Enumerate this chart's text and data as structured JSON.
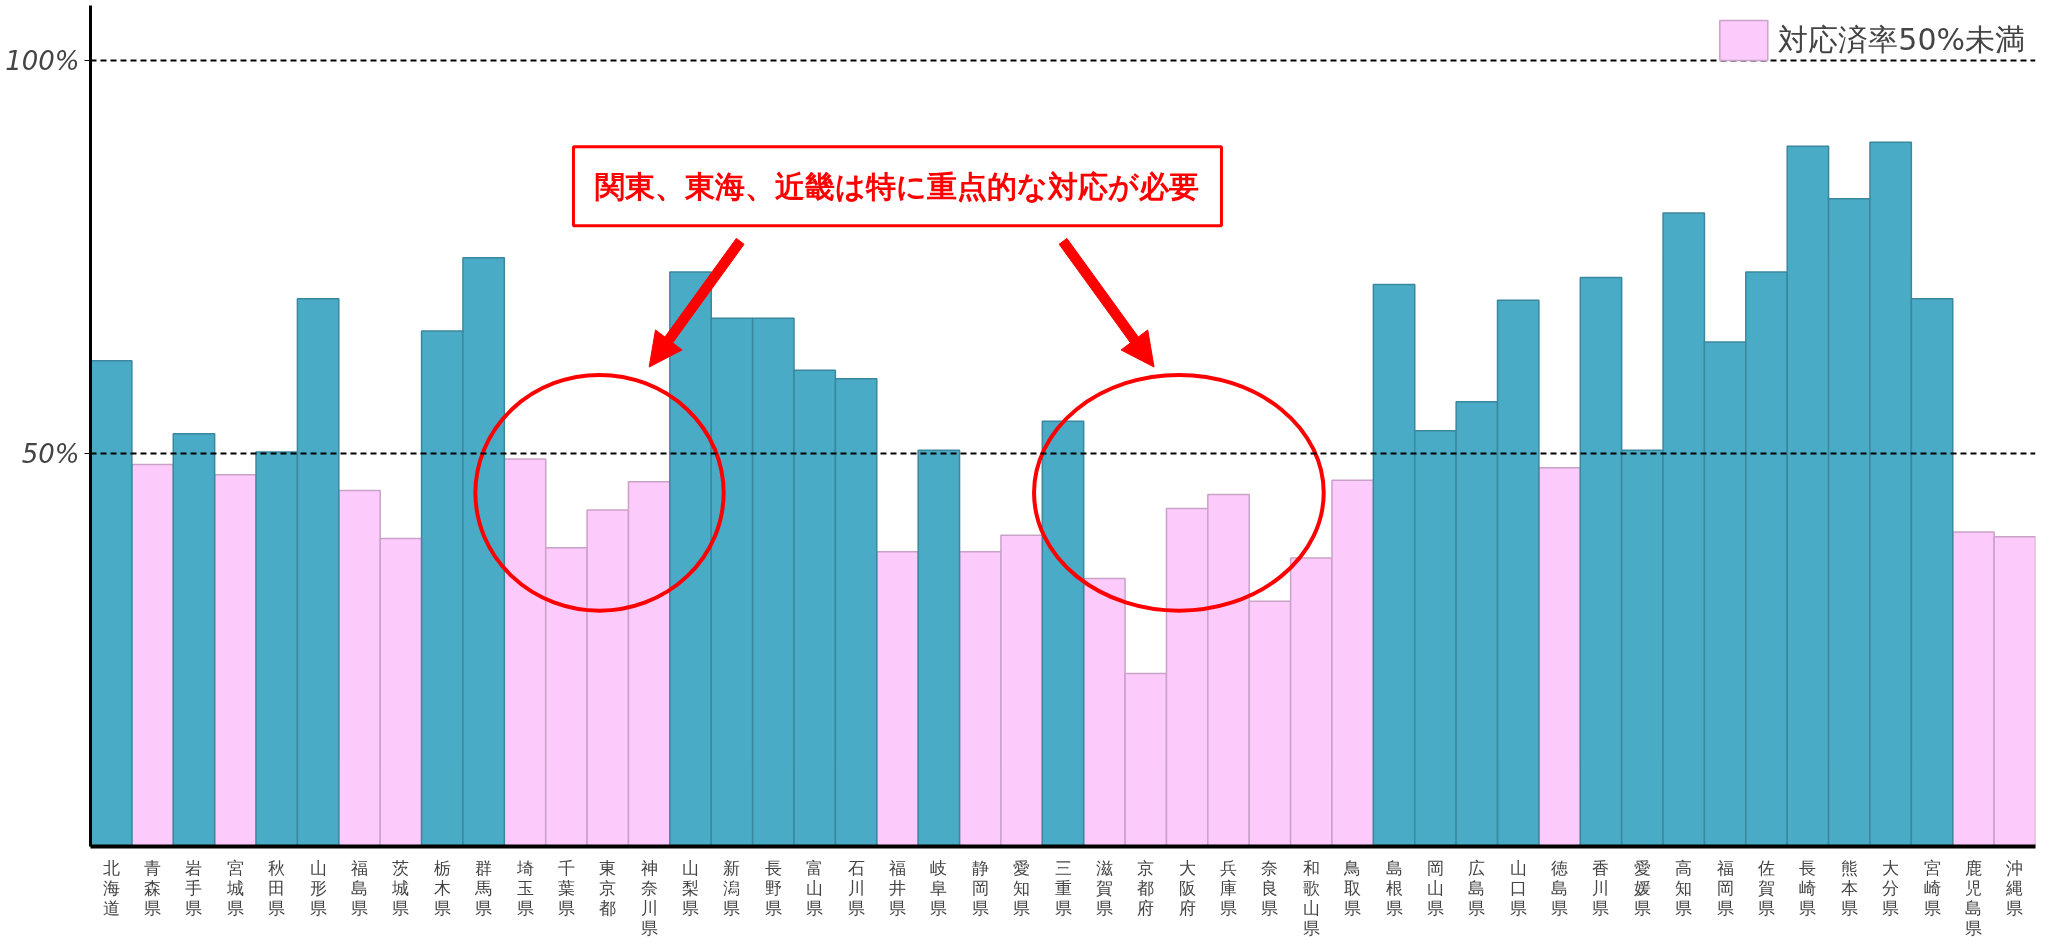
{
  "chart_data": {
    "type": "bar",
    "categories": [
      "北海道",
      "青森県",
      "岩手県",
      "宮城県",
      "秋田県",
      "山形県",
      "福島県",
      "茨城県",
      "栃木県",
      "群馬県",
      "埼玉県",
      "千葉県",
      "東京都",
      "神奈川県",
      "山梨県",
      "新潟県",
      "長野県",
      "富山県",
      "石川県",
      "福井県",
      "岐阜県",
      "静岡県",
      "愛知県",
      "三重県",
      "滋賀県",
      "京都府",
      "大阪府",
      "兵庫県",
      "奈良県",
      "和歌山県",
      "鳥取県",
      "島根県",
      "岡山県",
      "広島県",
      "山口県",
      "徳島県",
      "香川県",
      "愛媛県",
      "高知県",
      "福岡県",
      "佐賀県",
      "長崎県",
      "熊本県",
      "大分県",
      "宮崎県",
      "鹿児島県",
      "沖縄県"
    ],
    "series": [
      {
        "name": "対応済率50%未満",
        "color": "#fccbfb",
        "values": [
          null,
          48.6,
          null,
          47.3,
          null,
          null,
          45.3,
          39.2,
          null,
          null,
          49.3,
          38.0,
          42.8,
          46.4,
          null,
          null,
          null,
          null,
          null,
          37.5,
          null,
          37.5,
          39.6,
          null,
          34.1,
          22.0,
          43.0,
          44.8,
          31.2,
          36.7,
          46.6,
          null,
          null,
          null,
          null,
          48.2,
          null,
          null,
          null,
          null,
          null,
          null,
          null,
          null,
          null,
          40.0,
          39.4
        ]
      },
      {
        "color": "#4aabc6",
        "values": [
          61.8,
          null,
          52.5,
          null,
          50.2,
          69.7,
          null,
          null,
          65.6,
          74.9,
          null,
          null,
          null,
          null,
          73.1,
          67.2,
          67.2,
          60.6,
          59.5,
          null,
          50.4,
          null,
          null,
          54.1,
          null,
          null,
          null,
          null,
          null,
          null,
          null,
          71.5,
          52.9,
          56.6,
          69.5,
          null,
          72.4,
          50.4,
          80.6,
          64.2,
          73.1,
          89.1,
          82.4,
          89.6,
          69.7,
          null,
          null
        ]
      }
    ],
    "ylim": [
      0,
      107
    ],
    "yticks": [
      {
        "value": 50,
        "label": "50%"
      },
      {
        "value": 100,
        "label": "100%"
      }
    ],
    "ref_lines": [
      {
        "axis": "y",
        "value": 50,
        "line_style": "dashed",
        "color": "#000000"
      },
      {
        "axis": "y",
        "value": 100,
        "line_style": "dashed",
        "color": "#000000"
      }
    ],
    "annotations": [
      "関東、東海、近畿は特に重点的な対応が必要"
    ],
    "legend": "top right",
    "grid": false
  }
}
